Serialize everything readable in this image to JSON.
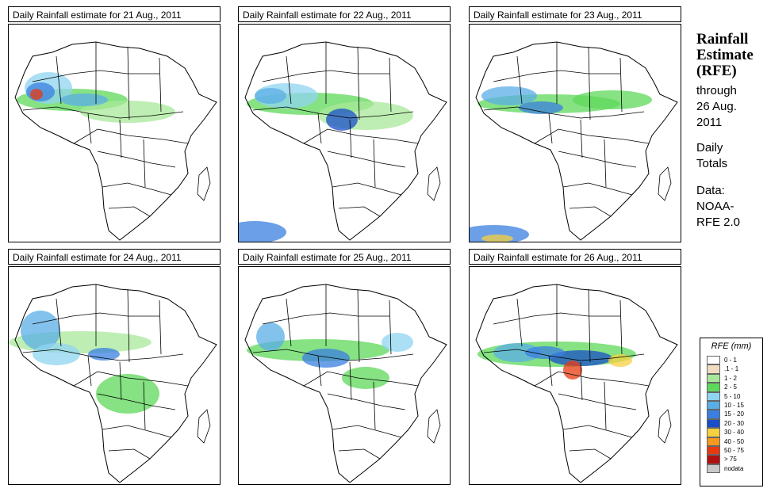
{
  "panels": [
    {
      "title": "Daily Rainfall estimate for  21 Aug., 2011"
    },
    {
      "title": "Daily Rainfall estimate for  22 Aug., 2011"
    },
    {
      "title": "Daily Rainfall estimate for  23 Aug., 2011"
    },
    {
      "title": "Daily Rainfall estimate for  24 Aug., 2011"
    },
    {
      "title": "Daily Rainfall estimate for  25 Aug., 2011"
    },
    {
      "title": "Daily Rainfall estimate for  26 Aug., 2011"
    }
  ],
  "sidebar": {
    "heading_line1": "Rainfall",
    "heading_line2": "Estimate",
    "heading_line3": "(RFE)",
    "through": "through",
    "date_line1": "26 Aug.",
    "date_line2": "2011",
    "totals_line1": "Daily",
    "totals_line2": "Totals",
    "data_line1": "Data:",
    "data_line2": "NOAA-",
    "data_line3": "RFE 2.0"
  },
  "legend": {
    "title": "RFE (mm)",
    "items": [
      {
        "label": "0 - 1",
        "color": "#ffffff"
      },
      {
        "label": ".1 - 1",
        "color": "#f0dcc0"
      },
      {
        "label": "1 - 2",
        "color": "#a8e89a"
      },
      {
        "label": "2 - 5",
        "color": "#5ed85a"
      },
      {
        "label": "5 - 10",
        "color": "#8fd4f0"
      },
      {
        "label": "10 - 15",
        "color": "#5aaee6"
      },
      {
        "label": "15 - 20",
        "color": "#3a7fe0"
      },
      {
        "label": "20 - 30",
        "color": "#1a4ec8"
      },
      {
        "label": "30 - 40",
        "color": "#f5d040"
      },
      {
        "label": "40 - 50",
        "color": "#f59a20"
      },
      {
        "label": "50 - 75",
        "color": "#e83a10"
      },
      {
        "label": "> 75",
        "color": "#b01010"
      },
      {
        "label": "nodata",
        "color": "#c8c8c8"
      }
    ]
  }
}
